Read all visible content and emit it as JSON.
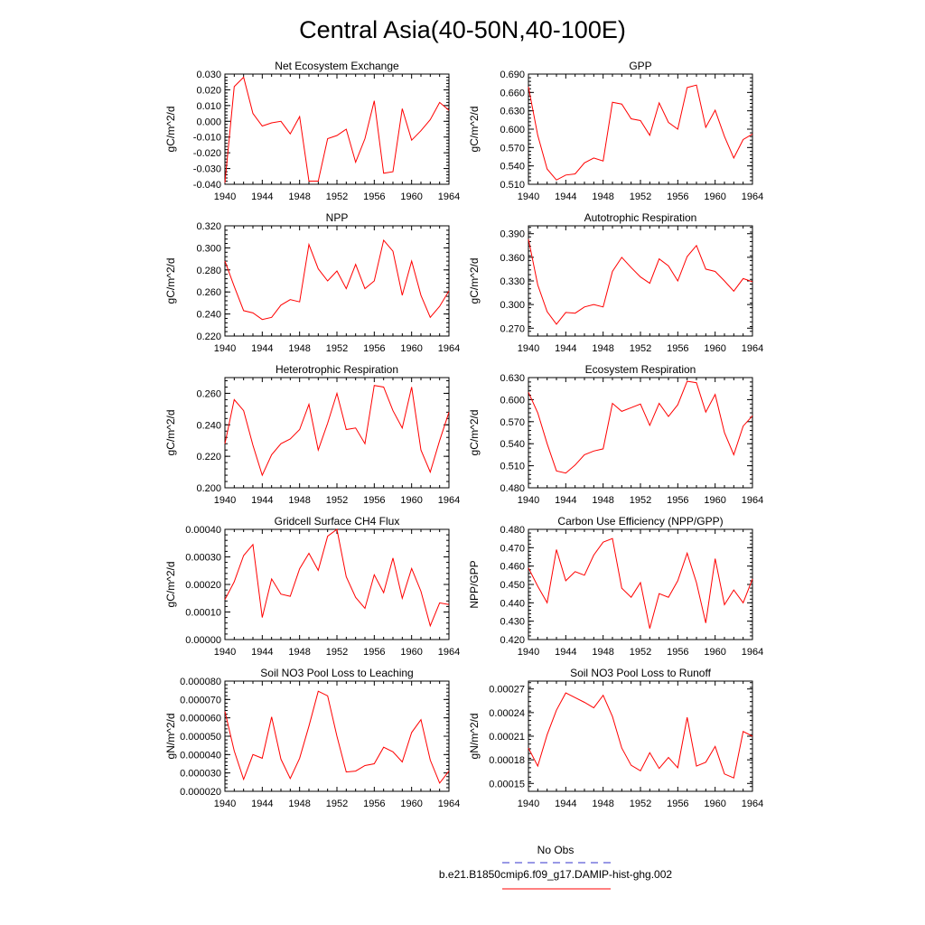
{
  "title": "Central Asia(40-50N,40-100E)",
  "legend": {
    "entries": [
      {
        "label": "No Obs",
        "color": "#3333cc",
        "style": "dashed"
      },
      {
        "label": "b.e21.B1850cmip6.f09_g17.DAMIP-hist-ghg.002",
        "color": "#ff0000",
        "style": "solid"
      }
    ]
  },
  "chart_data": [
    {
      "type": "line",
      "title": "Net Ecosystem Exchange",
      "ylabel": "gC/m^2/d",
      "x": [
        1940,
        1941,
        1942,
        1943,
        1944,
        1945,
        1946,
        1947,
        1948,
        1949,
        1950,
        1951,
        1952,
        1953,
        1954,
        1955,
        1956,
        1957,
        1958,
        1959,
        1960,
        1961,
        1962,
        1963,
        1964
      ],
      "series": [
        {
          "color": "#ff0000",
          "values": [
            -0.039,
            0.022,
            0.028,
            0.005,
            -0.003,
            -0.001,
            0.0,
            -0.008,
            0.003,
            -0.038,
            -0.038,
            -0.011,
            -0.009,
            -0.005,
            -0.026,
            -0.011,
            0.013,
            -0.033,
            -0.032,
            0.008,
            -0.012,
            -0.006,
            0.001,
            0.012,
            0.007
          ]
        }
      ],
      "ylim": [
        -0.04,
        0.03
      ],
      "xlim": [
        1940,
        1964
      ],
      "yticks": [
        "-0.040",
        "-0.030",
        "-0.020",
        "-0.010",
        "0.000",
        "0.010",
        "0.020",
        "0.030"
      ],
      "xticks": [
        "1940",
        "1944",
        "1948",
        "1952",
        "1956",
        "1960",
        "1964"
      ]
    },
    {
      "type": "line",
      "title": "GPP",
      "ylabel": "gC/m^2/d",
      "x": [
        1940,
        1941,
        1942,
        1943,
        1944,
        1945,
        1946,
        1947,
        1948,
        1949,
        1950,
        1951,
        1952,
        1953,
        1954,
        1955,
        1956,
        1957,
        1958,
        1959,
        1960,
        1961,
        1962,
        1963,
        1964
      ],
      "series": [
        {
          "color": "#ff0000",
          "values": [
            0.669,
            0.59,
            0.535,
            0.517,
            0.525,
            0.527,
            0.545,
            0.553,
            0.548,
            0.644,
            0.641,
            0.617,
            0.614,
            0.59,
            0.643,
            0.611,
            0.6,
            0.668,
            0.672,
            0.603,
            0.631,
            0.588,
            0.553,
            0.583,
            0.592
          ]
        }
      ],
      "ylim": [
        0.51,
        0.69
      ],
      "xlim": [
        1940,
        1964
      ],
      "yticks": [
        "0.510",
        "0.540",
        "0.570",
        "0.600",
        "0.630",
        "0.660",
        "0.690"
      ],
      "xticks": [
        "1940",
        "1944",
        "1948",
        "1952",
        "1956",
        "1960",
        "1964"
      ]
    },
    {
      "type": "line",
      "title": "NPP",
      "ylabel": "gC/m^2/d",
      "x": [
        1940,
        1941,
        1942,
        1943,
        1944,
        1945,
        1946,
        1947,
        1948,
        1949,
        1950,
        1951,
        1952,
        1953,
        1954,
        1955,
        1956,
        1957,
        1958,
        1959,
        1960,
        1961,
        1962,
        1963,
        1964
      ],
      "series": [
        {
          "color": "#ff0000",
          "values": [
            0.288,
            0.265,
            0.243,
            0.241,
            0.235,
            0.237,
            0.248,
            0.253,
            0.251,
            0.303,
            0.281,
            0.27,
            0.279,
            0.263,
            0.285,
            0.263,
            0.27,
            0.307,
            0.297,
            0.257,
            0.288,
            0.257,
            0.237,
            0.247,
            0.261
          ]
        }
      ],
      "ylim": [
        0.22,
        0.32
      ],
      "xlim": [
        1940,
        1964
      ],
      "yticks": [
        "0.220",
        "0.240",
        "0.260",
        "0.280",
        "0.300",
        "0.320"
      ],
      "xticks": [
        "1940",
        "1944",
        "1948",
        "1952",
        "1956",
        "1960",
        "1964"
      ]
    },
    {
      "type": "line",
      "title": "Autotrophic Respiration",
      "ylabel": "gC/m^2/d",
      "x": [
        1940,
        1941,
        1942,
        1943,
        1944,
        1945,
        1946,
        1947,
        1948,
        1949,
        1950,
        1951,
        1952,
        1953,
        1954,
        1955,
        1956,
        1957,
        1958,
        1959,
        1960,
        1961,
        1962,
        1963,
        1964
      ],
      "series": [
        {
          "color": "#ff0000",
          "values": [
            0.383,
            0.325,
            0.291,
            0.275,
            0.29,
            0.289,
            0.297,
            0.3,
            0.297,
            0.342,
            0.36,
            0.347,
            0.335,
            0.327,
            0.358,
            0.349,
            0.33,
            0.361,
            0.375,
            0.345,
            0.342,
            0.33,
            0.317,
            0.333,
            0.329
          ]
        }
      ],
      "ylim": [
        0.26,
        0.4
      ],
      "xlim": [
        1940,
        1964
      ],
      "yticks": [
        "0.270",
        "0.300",
        "0.330",
        "0.360",
        "0.390"
      ],
      "xticks": [
        "1940",
        "1944",
        "1948",
        "1952",
        "1956",
        "1960",
        "1964"
      ]
    },
    {
      "type": "line",
      "title": "Heterotrophic Respiration",
      "ylabel": "gC/m^2/d",
      "x": [
        1940,
        1941,
        1942,
        1943,
        1944,
        1945,
        1946,
        1947,
        1948,
        1949,
        1950,
        1951,
        1952,
        1953,
        1954,
        1955,
        1956,
        1957,
        1958,
        1959,
        1960,
        1961,
        1962,
        1963,
        1964
      ],
      "series": [
        {
          "color": "#ff0000",
          "values": [
            0.228,
            0.256,
            0.249,
            0.227,
            0.208,
            0.221,
            0.228,
            0.231,
            0.237,
            0.253,
            0.224,
            0.241,
            0.26,
            0.237,
            0.238,
            0.228,
            0.265,
            0.264,
            0.249,
            0.238,
            0.264,
            0.224,
            0.21,
            0.23,
            0.248
          ]
        }
      ],
      "ylim": [
        0.2,
        0.27
      ],
      "xlim": [
        1940,
        1964
      ],
      "yticks": [
        "0.200",
        "0.220",
        "0.240",
        "0.260"
      ],
      "xticks": [
        "1940",
        "1944",
        "1948",
        "1952",
        "1956",
        "1960",
        "1964"
      ]
    },
    {
      "type": "line",
      "title": "Ecosystem Respiration",
      "ylabel": "gC/m^2/d",
      "x": [
        1940,
        1941,
        1942,
        1943,
        1944,
        1945,
        1946,
        1947,
        1948,
        1949,
        1950,
        1951,
        1952,
        1953,
        1954,
        1955,
        1956,
        1957,
        1958,
        1959,
        1960,
        1961,
        1962,
        1963,
        1964
      ],
      "series": [
        {
          "color": "#ff0000",
          "values": [
            0.61,
            0.582,
            0.54,
            0.503,
            0.5,
            0.511,
            0.525,
            0.53,
            0.533,
            0.595,
            0.584,
            0.589,
            0.594,
            0.565,
            0.595,
            0.577,
            0.593,
            0.625,
            0.623,
            0.583,
            0.607,
            0.555,
            0.525,
            0.564,
            0.578
          ]
        }
      ],
      "ylim": [
        0.48,
        0.63
      ],
      "xlim": [
        1940,
        1964
      ],
      "yticks": [
        "0.480",
        "0.510",
        "0.540",
        "0.570",
        "0.600",
        "0.630"
      ],
      "xticks": [
        "1940",
        "1944",
        "1948",
        "1952",
        "1956",
        "1960",
        "1964"
      ]
    },
    {
      "type": "line",
      "title": "Gridcell Surface CH4 Flux",
      "ylabel": "gC/m^2/d",
      "x": [
        1940,
        1941,
        1942,
        1943,
        1944,
        1945,
        1946,
        1947,
        1948,
        1949,
        1950,
        1951,
        1952,
        1953,
        1954,
        1955,
        1956,
        1957,
        1958,
        1959,
        1960,
        1961,
        1962,
        1963,
        1964
      ],
      "series": [
        {
          "color": "#ff0000",
          "values": [
            0.000145,
            0.00021,
            0.000305,
            0.000345,
            8e-05,
            0.00022,
            0.000165,
            0.000157,
            0.000257,
            0.000313,
            0.000251,
            0.000375,
            0.0004,
            0.000228,
            0.000153,
            0.000113,
            0.000235,
            0.00017,
            0.000296,
            0.00015,
            0.000258,
            0.000175,
            5e-05,
            0.000133,
            0.000127
          ]
        }
      ],
      "ylim": [
        0.0,
        0.0004
      ],
      "xlim": [
        1940,
        1964
      ],
      "yticks": [
        "0.00000",
        "0.00010",
        "0.00020",
        "0.00030",
        "0.00040"
      ],
      "xticks": [
        "1940",
        "1944",
        "1948",
        "1952",
        "1956",
        "1960",
        "1964"
      ]
    },
    {
      "type": "line",
      "title": "Carbon Use Efficiency (NPP/GPP)",
      "ylabel": "NPP/GPP",
      "x": [
        1940,
        1941,
        1942,
        1943,
        1944,
        1945,
        1946,
        1947,
        1948,
        1949,
        1950,
        1951,
        1952,
        1953,
        1954,
        1955,
        1956,
        1957,
        1958,
        1959,
        1960,
        1961,
        1962,
        1963,
        1964
      ],
      "series": [
        {
          "color": "#ff0000",
          "values": [
            0.459,
            0.449,
            0.44,
            0.469,
            0.452,
            0.457,
            0.455,
            0.466,
            0.473,
            0.475,
            0.448,
            0.443,
            0.451,
            0.426,
            0.445,
            0.443,
            0.452,
            0.467,
            0.451,
            0.429,
            0.464,
            0.439,
            0.447,
            0.44,
            0.453
          ]
        }
      ],
      "ylim": [
        0.42,
        0.48
      ],
      "xlim": [
        1940,
        1964
      ],
      "yticks": [
        "0.420",
        "0.430",
        "0.440",
        "0.450",
        "0.460",
        "0.470",
        "0.480"
      ],
      "xticks": [
        "1940",
        "1944",
        "1948",
        "1952",
        "1956",
        "1960",
        "1964"
      ]
    },
    {
      "type": "line",
      "title": "Soil NO3 Pool Loss to Leaching",
      "ylabel": "gN/m^2/d",
      "x": [
        1940,
        1941,
        1942,
        1943,
        1944,
        1945,
        1946,
        1947,
        1948,
        1949,
        1950,
        1951,
        1952,
        1953,
        1954,
        1955,
        1956,
        1957,
        1958,
        1959,
        1960,
        1961,
        1962,
        1963,
        1964
      ],
      "series": [
        {
          "color": "#ff0000",
          "values": [
            6.35e-05,
            4.2e-05,
            2.65e-05,
            4e-05,
            3.8e-05,
            6.05e-05,
            3.75e-05,
            2.7e-05,
            3.8e-05,
            5.55e-05,
            7.45e-05,
            7.2e-05,
            5e-05,
            3.05e-05,
            3.1e-05,
            3.4e-05,
            3.5e-05,
            4.4e-05,
            4.15e-05,
            3.6e-05,
            5.2e-05,
            5.9e-05,
            3.7e-05,
            2.45e-05,
            3.1e-05
          ]
        }
      ],
      "ylim": [
        2e-05,
        8e-05
      ],
      "xlim": [
        1940,
        1964
      ],
      "yticks": [
        "0.000020",
        "0.000030",
        "0.000040",
        "0.000050",
        "0.000060",
        "0.000070",
        "0.000080"
      ],
      "xticks": [
        "1940",
        "1944",
        "1948",
        "1952",
        "1956",
        "1960",
        "1964"
      ]
    },
    {
      "type": "line",
      "title": "Soil NO3 Pool Loss to Runoff",
      "ylabel": "gN/m^2/d",
      "x": [
        1940,
        1941,
        1942,
        1943,
        1944,
        1945,
        1946,
        1947,
        1948,
        1949,
        1950,
        1951,
        1952,
        1953,
        1954,
        1955,
        1956,
        1957,
        1958,
        1959,
        1960,
        1961,
        1962,
        1963,
        1964
      ],
      "series": [
        {
          "color": "#ff0000",
          "values": [
            0.000195,
            0.000172,
            0.000212,
            0.000243,
            0.000265,
            0.000259,
            0.000253,
            0.000246,
            0.000262,
            0.000235,
            0.000195,
            0.000173,
            0.000166,
            0.000189,
            0.000169,
            0.000183,
            0.00017,
            0.000234,
            0.000172,
            0.000177,
            0.000197,
            0.000162,
            0.000157,
            0.000216,
            0.00021
          ]
        }
      ],
      "ylim": [
        0.00014,
        0.00028
      ],
      "xlim": [
        1940,
        1964
      ],
      "yticks": [
        "0.00015",
        "0.00018",
        "0.00021",
        "0.00024",
        "0.00027"
      ],
      "xticks": [
        "1940",
        "1944",
        "1948",
        "1952",
        "1956",
        "1960",
        "1964"
      ]
    }
  ]
}
